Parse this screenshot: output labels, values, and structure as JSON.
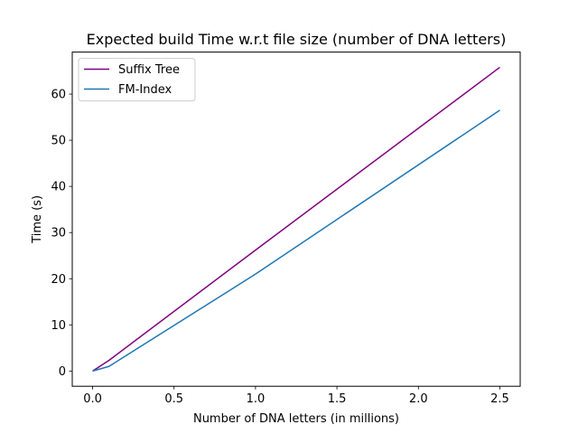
{
  "chart_data": {
    "type": "line",
    "title": "Expected build Time w.r.t file size (number of DNA letters)",
    "xlabel": "Number of DNA letters (in millions)",
    "ylabel": "Time (s)",
    "xlim": [
      -0.125,
      2.625
    ],
    "ylim": [
      -3.3,
      69.1
    ],
    "xticks": [
      0.0,
      0.5,
      1.0,
      1.5,
      2.0,
      2.5
    ],
    "xtick_labels": [
      "0.0",
      "0.5",
      "1.0",
      "1.5",
      "2.0",
      "2.5"
    ],
    "yticks": [
      0,
      10,
      20,
      30,
      40,
      50,
      60
    ],
    "ytick_labels": [
      "0",
      "10",
      "20",
      "30",
      "40",
      "50",
      "60"
    ],
    "grid": false,
    "legend_position": "top-left",
    "series": [
      {
        "name": "Suffix Tree",
        "color": "#800080",
        "x": [
          0.0,
          0.1,
          1.0,
          2.5
        ],
        "y": [
          0.0,
          2.3,
          26.2,
          65.8
        ]
      },
      {
        "name": "FM-Index",
        "color": "#1f77b4",
        "x": [
          0.0,
          0.1,
          1.0,
          2.5
        ],
        "y": [
          0.0,
          1.0,
          21.0,
          56.5
        ]
      }
    ]
  }
}
